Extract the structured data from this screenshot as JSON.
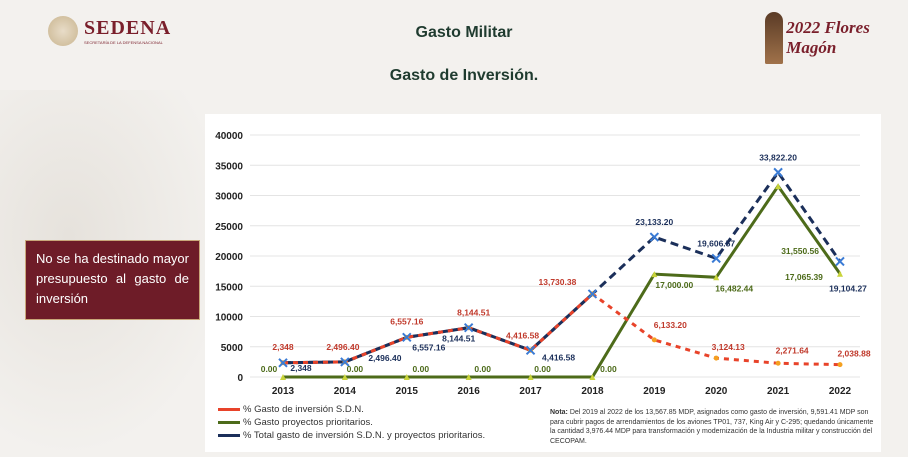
{
  "header": {
    "brand": "SEDENA",
    "brand_sub": "SECRETARÍA DE LA DEFENSA NACIONAL",
    "title": "Gasto Militar",
    "subtitle": "Gasto de Inversión.",
    "year_logo": "2022 Flores Magón"
  },
  "side_note": "No se ha destinado mayor presupuesto al gasto de inversión",
  "footnote": {
    "prefix": "Nota:",
    "text": " Del 2019 al 2022 de los 13,567.85 MDP, asignados como gasto de inversión, 9,591.41 MDP son para cubrir pagos de arrendamientos de los aviones TP01, 737, King Air y C-295; quedando únicamente la cantidad 3,976.44 MDP para transformación y modernización de la Industria militar y construcción del CECOPAM."
  },
  "chart_data": {
    "type": "line",
    "title": "Gasto de Inversión.",
    "categories": [
      "2013",
      "2014",
      "2015",
      "2016",
      "2017",
      "2018",
      "2019",
      "2020",
      "2021",
      "2022"
    ],
    "ylim": [
      0,
      40000
    ],
    "yticks": [
      0,
      5000,
      10000,
      15000,
      20000,
      25000,
      30000,
      35000,
      40000
    ],
    "grid": true,
    "legend_position": "bottom-left",
    "series": [
      {
        "name": "% Gasto de inversión S.D.N.",
        "color": "#e8432a",
        "values": [
          2348,
          2496.4,
          6557.16,
          8144.51,
          4416.58,
          13730.38,
          6133.2,
          3124.13,
          2271.64,
          2038.88
        ],
        "labels": [
          "2,348",
          "2,496.40",
          "6,557.16",
          "8,144.51",
          "4,416.58",
          "13,730.38",
          "6,133.20",
          "3,124.13",
          "2,271.64",
          "2,038.88"
        ]
      },
      {
        "name": "% Gasto proyectos prioritarios.",
        "color": "#4d6b1a",
        "values": [
          0,
          0,
          0,
          0,
          0,
          0,
          17000,
          16482.44,
          31550.56,
          17065.39
        ],
        "labels": [
          "0.00",
          "0.00",
          "0.00",
          "0.00",
          "0.00",
          "0.00",
          "17,000.00",
          "16,482.44",
          "31,550.56",
          "17,065.39"
        ]
      },
      {
        "name": "% Total gasto de inversión S.D.N. y proyectos prioritarios.",
        "color": "#1b2f5a",
        "values": [
          2348,
          2496.4,
          6557.16,
          8144.51,
          4416.58,
          13730.38,
          23133.2,
          19606.57,
          33822.2,
          19104.27
        ],
        "labels": [
          "2,348",
          "2,496.40",
          "6,557.16",
          "8,144.51",
          "4,416.58",
          "",
          "23,133.20",
          "19,606.57",
          "33,822.20",
          "19,104.27"
        ]
      }
    ]
  }
}
